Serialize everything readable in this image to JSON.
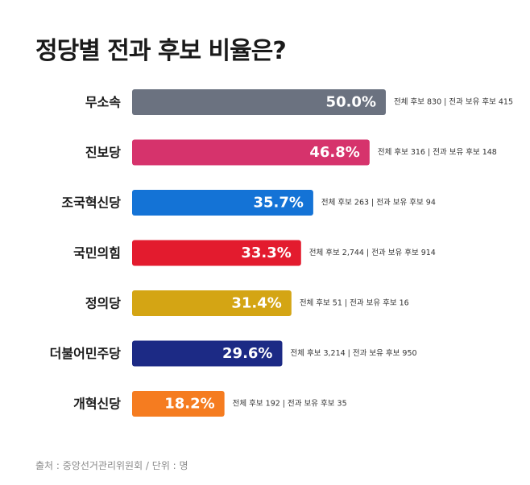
{
  "title": "정당별 전과 후보 비율은?",
  "source": "출처 : 중앙선거관리위원회 / 단위 : 명",
  "chart_data": {
    "type": "bar",
    "orientation": "horizontal",
    "value_unit": "%",
    "xlim": [
      0,
      50
    ],
    "categories": [
      "무소속",
      "진보당",
      "조국혁신당",
      "국민의힘",
      "정의당",
      "더불어민주당",
      "개혁신당"
    ],
    "values": [
      50.0,
      46.8,
      35.7,
      33.3,
      31.4,
      29.6,
      18.2
    ],
    "value_labels": [
      "50.0%",
      "46.8%",
      "35.7%",
      "33.3%",
      "31.4%",
      "29.6%",
      "18.2%"
    ],
    "annotations": [
      "전체 후보 830 | 전과 보유 후보 415",
      "전체 후보 316 | 전과 보유 후보 148",
      "전체 후보 263 | 전과 보유 후보 94",
      "전체 후보 2,744 | 전과 보유 후보 914",
      "전체 후보 51 | 전과 보유 후보 16",
      "전체 후보 3,214 | 전과 보유 후보 950",
      "전체 후보 192 | 전과 보유 후보 35"
    ],
    "colors": [
      "#6b7280",
      "#d6336c",
      "#1473d6",
      "#e31b2e",
      "#d4a514",
      "#1c2a85",
      "#f57c20"
    ],
    "grid": false,
    "legend": false
  }
}
